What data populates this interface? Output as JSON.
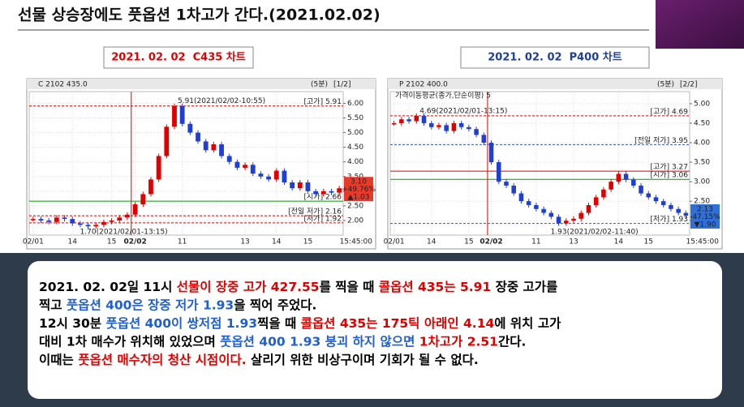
{
  "header": {
    "title": "선물 상승장에도 풋옵션 1차고가 간다.(2021.02.02)"
  },
  "chart_data": [
    {
      "type": "candle-line",
      "caption": "2021. 02. 02  C435 차트",
      "caption_color": "#e00000",
      "title": "C 2102 435.0",
      "period": "(5분)",
      "page": "[1/2]",
      "clock": "15:45:00",
      "categories": [
        "02/01",
        null,
        null,
        null,
        null,
        "14",
        null,
        null,
        null,
        null,
        "15",
        null,
        null,
        "02/02",
        null,
        null,
        null,
        null,
        null,
        "11",
        null,
        null,
        null,
        null,
        null,
        null,
        null,
        "13",
        null,
        null,
        null,
        "14",
        null,
        null,
        null,
        "15",
        null,
        null,
        null,
        null
      ],
      "values": [
        2.05,
        2.0,
        1.95,
        2.1,
        2.05,
        1.9,
        1.85,
        1.8,
        1.85,
        1.95,
        2.0,
        2.1,
        2.2,
        2.55,
        2.9,
        3.4,
        4.2,
        5.2,
        5.91,
        5.3,
        5.0,
        4.7,
        4.4,
        4.6,
        4.2,
        4.0,
        3.8,
        3.9,
        3.6,
        3.5,
        3.4,
        3.7,
        3.3,
        3.1,
        3.3,
        3.0,
        2.9,
        3.0,
        2.95,
        3.1
      ],
      "ylim": [
        1.5,
        6.4
      ],
      "yticks": [
        {
          "value": 2,
          "label": "2.00"
        },
        {
          "value": 2.5,
          "label": "2.50"
        },
        {
          "value": 3,
          "label": "3.00"
        },
        {
          "value": 3.5,
          "label": "3.50"
        },
        {
          "value": 4,
          "label": "4.00"
        },
        {
          "value": 4.5,
          "label": "4.50"
        },
        {
          "value": 5,
          "label": "5.00"
        },
        {
          "value": 5.5,
          "label": "5.50"
        },
        {
          "value": 6,
          "label": "6.00"
        }
      ],
      "hlines": [
        {
          "value": 5.91,
          "label": "[고가] 5.91",
          "color": "#e00000",
          "dash": true
        },
        {
          "value": 2.66,
          "label": "[시가] 2.66",
          "color": "#009900",
          "dash": false
        },
        {
          "value": 2.16,
          "label": "[전일 저가] 2.16",
          "color": "#e00000",
          "dash": true
        },
        {
          "value": 1.92,
          "label": "[저가] 1.92",
          "color": "#e00000",
          "dash": true
        }
      ],
      "peak_label": "5.91(2021/02/02-10:55)",
      "low_label": "1.70(2021/02/01-13:15)",
      "badge": [
        "3.10",
        "+49.76%",
        "▲1.03"
      ],
      "badge_color": "#e83a2a",
      "split_index": 12
    },
    {
      "type": "candle-line",
      "caption": "2021. 02. 02  P400 차트",
      "caption_color": "#1f3f9a",
      "title": "P 2102 400.0",
      "period": "(5분)",
      "page": "[2/2]",
      "clock": "15:45:00",
      "legend": "가격이동평균(종가,단순이평) 5",
      "categories": [
        "02/01",
        null,
        null,
        null,
        null,
        "14",
        null,
        null,
        null,
        null,
        "15",
        null,
        null,
        "02/02",
        null,
        null,
        null,
        null,
        null,
        "11",
        null,
        null,
        null,
        null,
        "13",
        null,
        null,
        null,
        null,
        null,
        "14",
        null,
        null,
        null,
        "15",
        null,
        null,
        null,
        null,
        null
      ],
      "values": [
        4.5,
        4.6,
        4.55,
        4.69,
        4.5,
        4.4,
        4.45,
        4.3,
        4.5,
        4.4,
        4.35,
        4.2,
        4.0,
        3.5,
        3.0,
        2.9,
        2.7,
        2.5,
        2.4,
        2.3,
        2.2,
        2.1,
        1.93,
        2.0,
        2.05,
        2.2,
        2.4,
        2.6,
        2.8,
        3.0,
        3.2,
        3.05,
        2.9,
        2.7,
        2.6,
        2.5,
        2.4,
        2.3,
        2.2,
        2.13
      ],
      "ylim": [
        1.63,
        5.31
      ],
      "yticks": [
        {
          "value": 2,
          "label": "2.00"
        },
        {
          "value": 2.5,
          "label": "2.50"
        },
        {
          "value": 3,
          "label": "3.00"
        },
        {
          "value": 3.5,
          "label": "3.50"
        },
        {
          "value": 4,
          "label": "4.00"
        },
        {
          "value": 4.5,
          "label": "4.50"
        },
        {
          "value": 5,
          "label": "5.00"
        }
      ],
      "hlines": [
        {
          "value": 4.69,
          "label": "[고가] 4.69",
          "color": "#e00000",
          "dash": true
        },
        {
          "value": 3.95,
          "label": "[전일 저가] 3.95",
          "color": "#3355cc",
          "dash": true
        },
        {
          "value": 3.27,
          "label": "[고가] 3.27",
          "color": "#e00000",
          "dash": false
        },
        {
          "value": 3.06,
          "label": "[시가] 3.06",
          "color": "#009900",
          "dash": false
        },
        {
          "value": 1.93,
          "label": "[저가] 1.93",
          "color": "#3355cc",
          "dash": true
        }
      ],
      "peak_label": "4.69(2021/02/01-13:15)",
      "low_label": "1.93(2021/02/02-11:40)",
      "badge": [
        "2.13",
        "-47.15%",
        "▼1.90"
      ],
      "badge_color": "#2f6fd6",
      "split_index": 12
    }
  ],
  "body": {
    "lines": [
      [
        {
          "text": "2021. 02. 02일 11시 ",
          "color": "#000"
        },
        {
          "text": "선물이 장중 고가 427.55",
          "color": "#e00000"
        },
        {
          "text": "를 찍을 때 ",
          "color": "#000"
        },
        {
          "text": "콜옵션 435는 5.91",
          "color": "#e00000"
        },
        {
          "text": " 장중 고가를",
          "color": "#000"
        }
      ],
      [
        {
          "text": "찍고 ",
          "color": "#000"
        },
        {
          "text": "풋옵션 400은 장중 저가 1.93",
          "color": "#1f5fd0"
        },
        {
          "text": "을 찍어 주었다.",
          "color": "#000"
        }
      ],
      [
        {
          "text": "12시 30분 ",
          "color": "#000"
        },
        {
          "text": "풋옵션 400이 쌍저점 1.93",
          "color": "#1f5fd0"
        },
        {
          "text": "찍을 때 ",
          "color": "#000"
        },
        {
          "text": "콜옵션 435는 175틱 아래인 4.14",
          "color": "#e00000"
        },
        {
          "text": "에 위치 고가",
          "color": "#000"
        }
      ],
      [
        {
          "text": "대비 1차 매수가 위치해 있었으며 ",
          "color": "#000"
        },
        {
          "text": "풋옵션 400 1.93 붕괴 하지 않으면 ",
          "color": "#1f5fd0"
        },
        {
          "text": "1차고가 2.51",
          "color": "#e00000"
        },
        {
          "text": "간다.",
          "color": "#000"
        }
      ],
      [
        {
          "text": "이때는 ",
          "color": "#000"
        },
        {
          "text": "풋옵션 매수자의 청산 시점이다.",
          "color": "#e00000"
        },
        {
          "text": " 살리기 위한 비상구이며 기회가 될 수 없다.",
          "color": "#000"
        }
      ]
    ]
  }
}
